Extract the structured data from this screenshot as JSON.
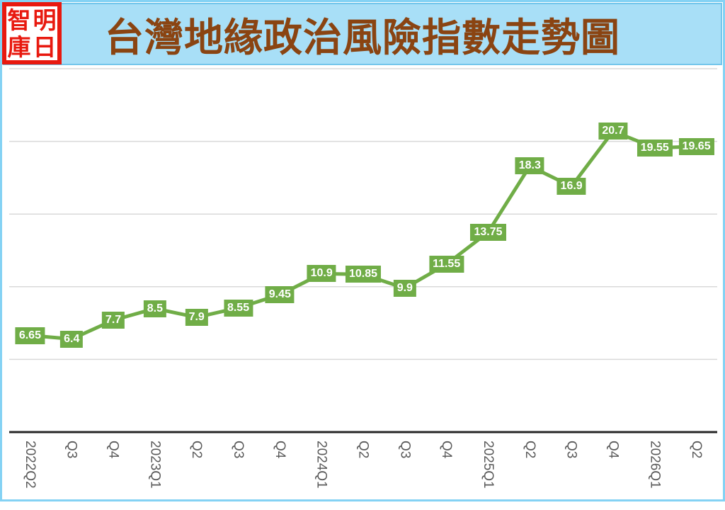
{
  "logo": {
    "name": "明日智庫",
    "chars": [
      "智",
      "明",
      "庫",
      "日"
    ],
    "red": "#E8190F"
  },
  "header": {
    "title": "台灣地緣政治風險指數走勢圖",
    "title_color": "#8A4412",
    "band_bg": "#A8DFF7",
    "band_border": "#74C6EB",
    "frame_border": "#84D2F4"
  },
  "chart_data": {
    "type": "line",
    "title": "台灣地緣政治風險指數走勢圖",
    "categories": [
      "2022Q2",
      "Q3",
      "Q4",
      "2023Q1",
      "Q2",
      "Q3",
      "Q4",
      "2024Q1",
      "Q2",
      "Q3",
      "Q4",
      "2025Q1",
      "Q2",
      "Q3",
      "Q4",
      "2026Q1",
      "Q2"
    ],
    "values": [
      6.65,
      6.4,
      7.7,
      8.5,
      7.9,
      8.55,
      9.45,
      10.9,
      10.85,
      9.9,
      11.55,
      13.75,
      18.3,
      16.9,
      20.7,
      19.55,
      19.65
    ],
    "labels": [
      "6.65",
      "6.4",
      "7.7",
      "8.5",
      "7.9",
      "8.55",
      "9.45",
      "10.9",
      "10.85",
      "9.9",
      "11.55",
      "13.75",
      "18.3",
      "16.9",
      "20.7",
      "19.55",
      "19.65"
    ],
    "xlabel": "",
    "ylabel": "",
    "ylim": [
      0,
      25
    ],
    "grid_step": 5,
    "grid": true,
    "legend": false,
    "y_axis_labels_visible": false,
    "series_color": "#70AD47",
    "label_text_color": "#FFFFFF",
    "gridline_color": "#D9D9D9",
    "axis_line_color": "#262626",
    "tick_label_color": "#595959"
  }
}
